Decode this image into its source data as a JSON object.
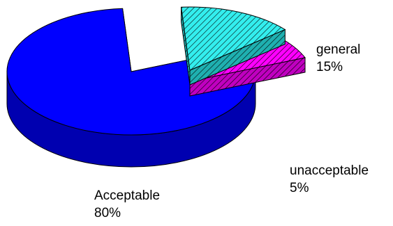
{
  "chart_data": {
    "type": "pie",
    "style": "3d-exploded",
    "slices": [
      {
        "label": "Acceptable",
        "value": 80,
        "value_label": "80%",
        "color": "#0000ff",
        "pattern": "solid"
      },
      {
        "label": "general",
        "value": 15,
        "value_label": "15%",
        "color": "#33eeee",
        "pattern": "diagonal-hatch"
      },
      {
        "label": "unacceptable",
        "value": 5,
        "value_label": "5%",
        "color": "#ff00ff",
        "pattern": "diagonal-hatch"
      }
    ],
    "legend": "none"
  }
}
